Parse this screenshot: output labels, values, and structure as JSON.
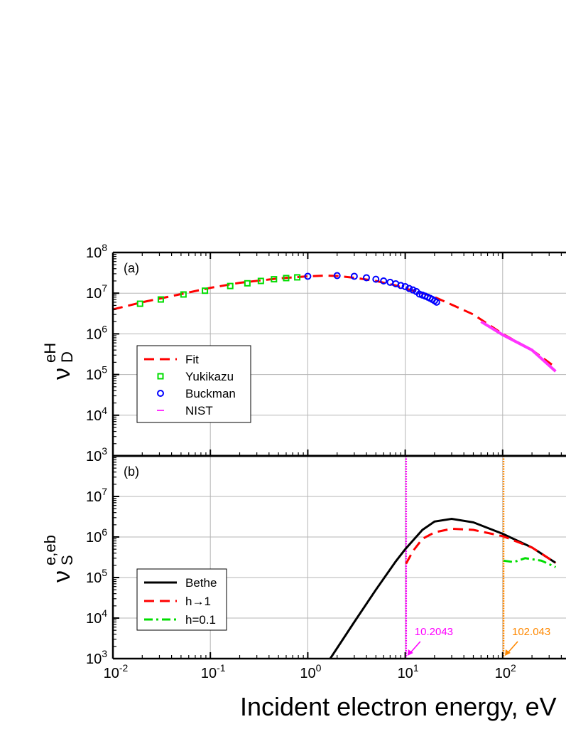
{
  "xlabel": "Incident electron energy, eV",
  "x_ticks": [
    {
      "base": "10",
      "exp": "-2"
    },
    {
      "base": "10",
      "exp": "-1"
    },
    {
      "base": "10",
      "exp": "0"
    },
    {
      "base": "10",
      "exp": "1"
    },
    {
      "base": "10",
      "exp": "2"
    }
  ],
  "chart_data": [
    {
      "type": "scatter",
      "panel_label": "(a)",
      "ylabel": {
        "base": "ν",
        "sup": "eH",
        "sub": "D"
      },
      "x_scale": "log",
      "y_scale": "log",
      "xlim": [
        0.01,
        350
      ],
      "ylim": [
        1000,
        100000000
      ],
      "grid": true,
      "legend_position": "bottom-left",
      "y_ticks": [
        {
          "base": "10",
          "exp": "3"
        },
        {
          "base": "10",
          "exp": "4"
        },
        {
          "base": "10",
          "exp": "5"
        },
        {
          "base": "10",
          "exp": "6"
        },
        {
          "base": "10",
          "exp": "7"
        },
        {
          "base": "10",
          "exp": "8"
        }
      ],
      "series": [
        {
          "name": "Fit",
          "style": "dashed-line",
          "color": "#ff0000",
          "x": [
            0.01,
            0.02,
            0.05,
            0.1,
            0.2,
            0.5,
            1,
            1.5,
            2,
            3,
            5,
            8,
            10,
            15,
            20,
            30,
            50,
            100,
            200,
            350
          ],
          "y": [
            4000000,
            6000000,
            9500000,
            13500000,
            18000000,
            23000000,
            26000000,
            27000000,
            26500000,
            24000000,
            20000000,
            15500000,
            13000000,
            10000000,
            8000000,
            5200000,
            3000000,
            1000000,
            400000,
            150000
          ]
        },
        {
          "name": "Yukikazu",
          "style": "open-square",
          "color": "#00dd00",
          "x": [
            0.019,
            0.031,
            0.053,
            0.088,
            0.16,
            0.24,
            0.33,
            0.45,
            0.6,
            0.78
          ],
          "y": [
            5500000,
            7000000,
            9300000,
            11500000,
            15000000,
            17500000,
            20000000,
            22000000,
            23500000,
            24500000
          ]
        },
        {
          "name": "Buckman",
          "style": "open-circle",
          "color": "#0000ff",
          "x": [
            1,
            2,
            3,
            4,
            5,
            6,
            7,
            8,
            9,
            10,
            11,
            12,
            13,
            14,
            15,
            16,
            17,
            18,
            19,
            20,
            21
          ],
          "y": [
            26000000,
            27000000,
            26000000,
            24000000,
            22000000,
            20000000,
            18500000,
            17000000,
            15500000,
            14500000,
            13000000,
            12000000,
            11000000,
            9500000,
            9000000,
            8500000,
            8000000,
            7500000,
            7000000,
            6500000,
            6000000
          ]
        },
        {
          "name": "NIST",
          "style": "solid-line",
          "color": "#ff33ff",
          "x": [
            60,
            100,
            200,
            350
          ],
          "y": [
            2000000,
            950000,
            400000,
            120000
          ]
        }
      ]
    },
    {
      "type": "line",
      "panel_label": "(b)",
      "ylabel": {
        "base": "ν",
        "sup": "e,eb",
        "sub": "S"
      },
      "x_scale": "log",
      "y_scale": "log",
      "xlim": [
        0.01,
        350
      ],
      "ylim": [
        1000,
        100000000
      ],
      "grid": true,
      "legend_position": "bottom-left",
      "y_ticks": [
        {
          "base": "10",
          "exp": "3"
        },
        {
          "base": "10",
          "exp": "4"
        },
        {
          "base": "10",
          "exp": "5"
        },
        {
          "base": "10",
          "exp": "6"
        },
        {
          "base": "10",
          "exp": "7"
        }
      ],
      "series": [
        {
          "name": "Bethe",
          "style": "solid",
          "color": "#000000",
          "x": [
            1.7,
            3,
            5,
            8,
            10,
            15,
            20,
            30,
            50,
            100,
            200,
            350
          ],
          "y": [
            1000,
            8000,
            50000,
            250000,
            500000,
            1500000,
            2400000,
            2800000,
            2300000,
            1200000,
            550000,
            230000
          ]
        },
        {
          "name": "h→1",
          "style": "dashed",
          "color": "#ff0000",
          "x": [
            10.2,
            12,
            15,
            20,
            30,
            50,
            100,
            200,
            350
          ],
          "y": [
            220000,
            450000,
            900000,
            1300000,
            1600000,
            1500000,
            1050000,
            550000,
            230000
          ]
        },
        {
          "name": "h=0.1",
          "style": "dash-dot",
          "color": "#00dd00",
          "x": [
            102,
            130,
            170,
            250,
            350
          ],
          "y": [
            260000,
            240000,
            300000,
            260000,
            180000
          ]
        }
      ],
      "annotations": [
        {
          "label": "10.2043",
          "x": 10.2043,
          "color": "#ff00ff",
          "line_style": "dotted"
        },
        {
          "label": "102.043",
          "x": 102.043,
          "color": "#ff8800",
          "line_style": "dotted"
        }
      ]
    }
  ]
}
